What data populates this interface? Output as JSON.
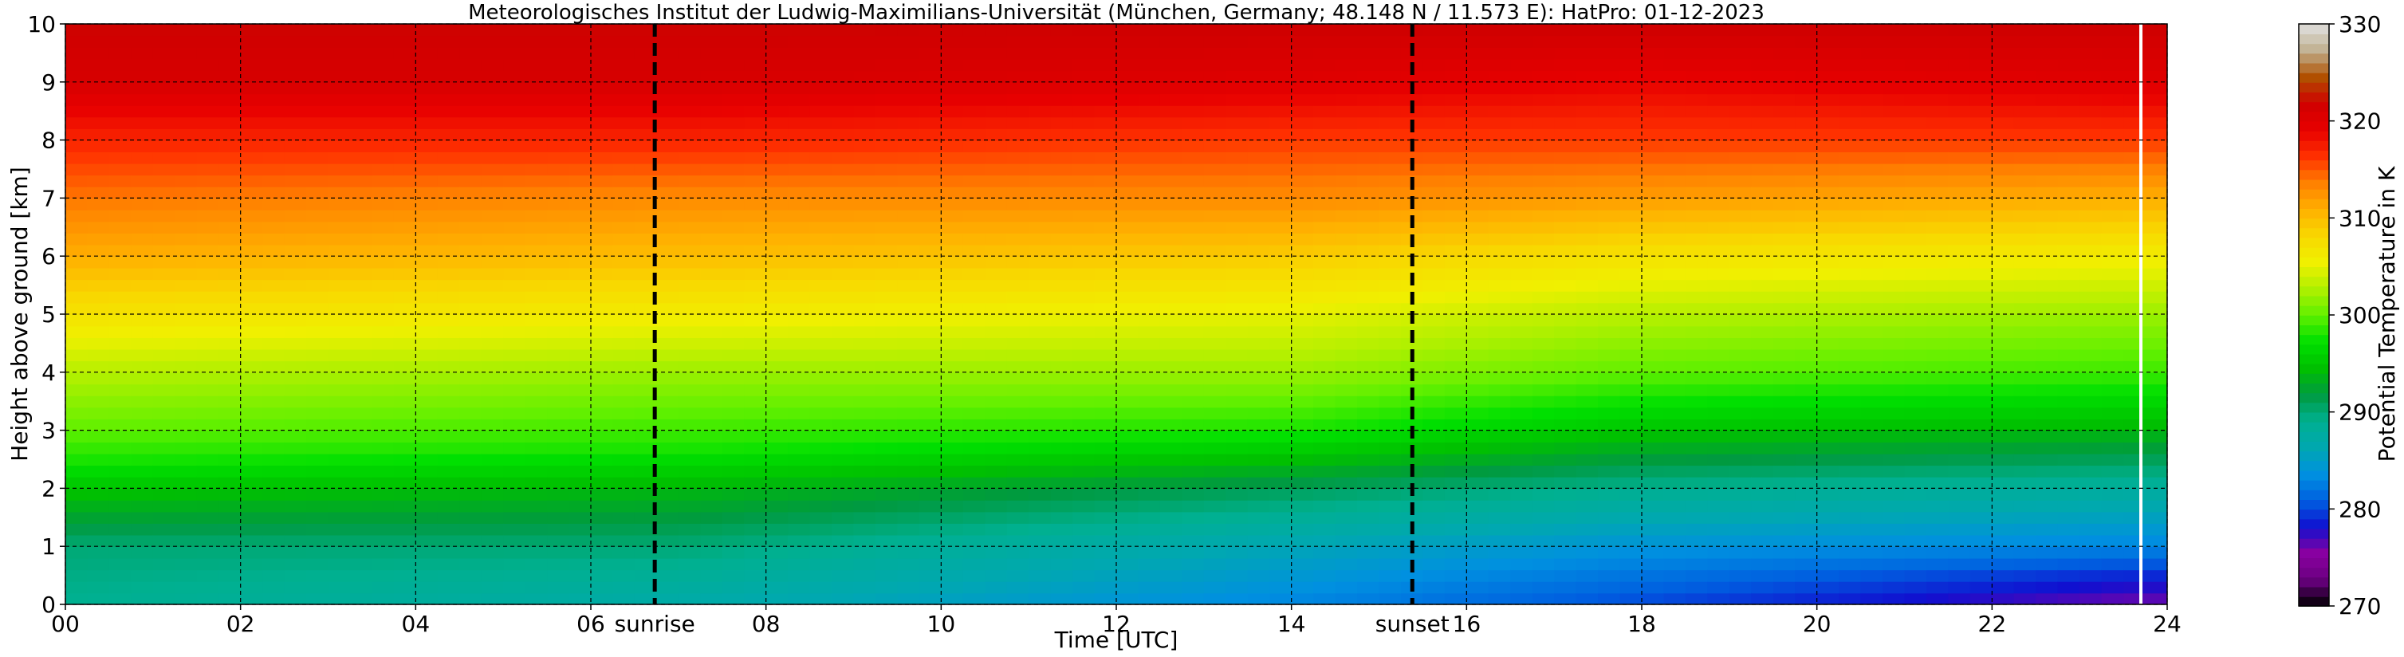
{
  "chart_data": {
    "type": "heatmap",
    "title": "Meteorologisches Institut der Ludwig-Maximilians-Universität (München, Germany; 48.148 N / 11.573 E):    HatPro: 01-12-2023",
    "xlabel": "Time [UTC]",
    "ylabel": "Height above ground [km]",
    "xlim": [
      0,
      24
    ],
    "ylim": [
      0,
      10
    ],
    "x_ticks": [
      "00",
      "02",
      "04",
      "06",
      "08",
      "10",
      "12",
      "14",
      "16",
      "18",
      "20",
      "22",
      "24"
    ],
    "y_ticks": [
      "0",
      "1",
      "2",
      "3",
      "4",
      "5",
      "6",
      "7",
      "8",
      "9",
      "10"
    ],
    "grid": true,
    "colorbar": {
      "label": "Potential Temperature in K",
      "min": 270,
      "max": 330,
      "ticks": [
        "270",
        "280",
        "290",
        "300",
        "310",
        "320",
        "330"
      ],
      "colors": [
        "#000000",
        "#6a0080",
        "#8a00a0",
        "#1010d0",
        "#0060e0",
        "#0090e0",
        "#00a8b0",
        "#00b090",
        "#009a40",
        "#00c000",
        "#00e000",
        "#60f000",
        "#b0f000",
        "#f0f000",
        "#f8d800",
        "#ffb000",
        "#ff8000",
        "#ff3000",
        "#e80000",
        "#d00000",
        "#b05000",
        "#c0b090",
        "#e0e0e0"
      ]
    },
    "annotations": [
      {
        "label": "sunrise",
        "time": 6.73
      },
      {
        "label": "sunset",
        "time": 15.38
      }
    ],
    "field_description_points": [
      {
        "time": 0,
        "values_by_height_K": [
          [
            0,
            289
          ],
          [
            1,
            290
          ],
          [
            2,
            295
          ],
          [
            2.5,
            298
          ],
          [
            3,
            300
          ],
          [
            4,
            303
          ],
          [
            5,
            307
          ],
          [
            6,
            311
          ],
          [
            7,
            314
          ],
          [
            8,
            317
          ],
          [
            9,
            321
          ],
          [
            10,
            322
          ]
        ]
      },
      {
        "time": 7,
        "values_by_height_K": [
          [
            0,
            287
          ],
          [
            1,
            290
          ],
          [
            2,
            294
          ],
          [
            2.7,
            298
          ],
          [
            3,
            299
          ],
          [
            4,
            302
          ],
          [
            5,
            306
          ],
          [
            6,
            310
          ],
          [
            7,
            313
          ],
          [
            8,
            317
          ],
          [
            9,
            321
          ],
          [
            10,
            322
          ]
        ]
      },
      {
        "time": 14,
        "values_by_height_K": [
          [
            0,
            283
          ],
          [
            1,
            286
          ],
          [
            2,
            291
          ],
          [
            3,
            298
          ],
          [
            4,
            302
          ],
          [
            5,
            305
          ],
          [
            6,
            309
          ],
          [
            7,
            313
          ],
          [
            8,
            316
          ],
          [
            9,
            320
          ],
          [
            10,
            322
          ]
        ]
      },
      {
        "time": 18,
        "values_by_height_K": [
          [
            0,
            280
          ],
          [
            1,
            284
          ],
          [
            2,
            289
          ],
          [
            3,
            295
          ],
          [
            4,
            300
          ],
          [
            5,
            303
          ],
          [
            6,
            307
          ],
          [
            7,
            312
          ],
          [
            8,
            316
          ],
          [
            9,
            319
          ],
          [
            10,
            322
          ]
        ]
      },
      {
        "time": 23.5,
        "values_by_height_K": [
          [
            0,
            276
          ],
          [
            0.5,
            279
          ],
          [
            1,
            283
          ],
          [
            2,
            288
          ],
          [
            3,
            294
          ],
          [
            4,
            299
          ],
          [
            5,
            302
          ],
          [
            6,
            306
          ],
          [
            7,
            311
          ],
          [
            8,
            316
          ],
          [
            9,
            320
          ],
          [
            10,
            322
          ]
        ]
      }
    ],
    "data_gap_time": 23.7
  }
}
